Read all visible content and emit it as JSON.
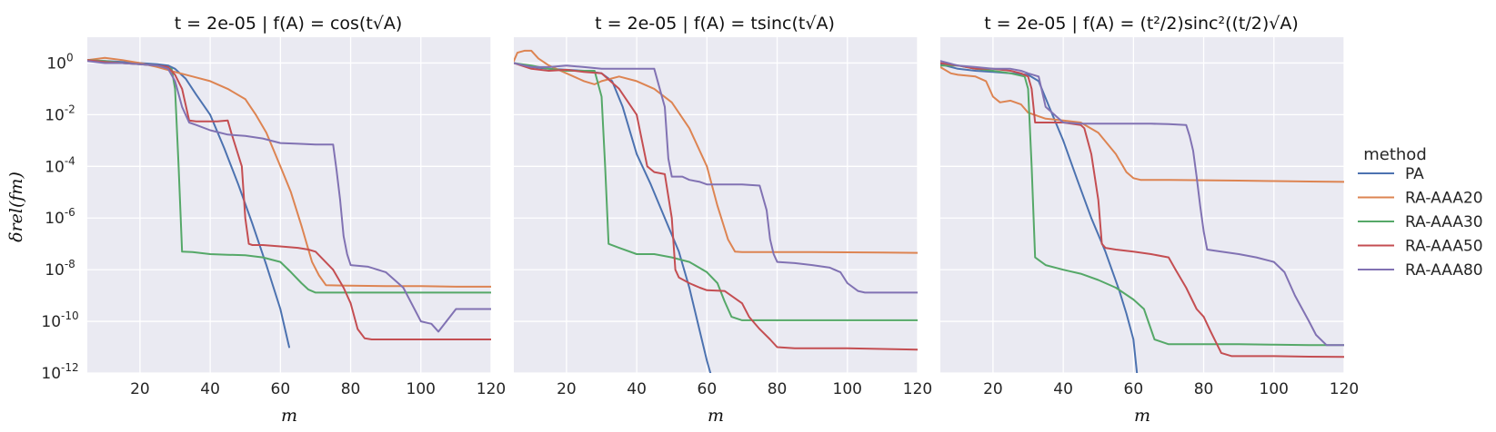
{
  "figure": {
    "ylabel": "δrel(fm)",
    "legend_title": "method",
    "legend_placement": "right-center"
  },
  "chart_data": [
    {
      "type": "line",
      "title": "t = 2e-05 | f(A) = cos(t√A)",
      "xlabel": "m",
      "ylabel": "δrel(fm)",
      "xlim": [
        5,
        120
      ],
      "ylim": [
        1e-12,
        10
      ],
      "yscale": "log",
      "grid": true,
      "xticks": [
        20,
        40,
        60,
        80,
        100,
        120
      ],
      "yticks": [
        "10^0",
        "10^-2",
        "10^-4",
        "10^-6",
        "10^-8",
        "10^-10",
        "10^-12"
      ],
      "series": [
        {
          "name": "PA",
          "color": "#4c72b0",
          "x": [
            5,
            10,
            15,
            20,
            25,
            28,
            30,
            33,
            36,
            40,
            44,
            48,
            52,
            56,
            60,
            62.5
          ],
          "y": [
            1.3,
            1.2,
            1.1,
            1.0,
            0.9,
            0.8,
            0.6,
            0.25,
            0.06,
            0.01,
            0.0005,
            2e-05,
            6e-07,
            1.5e-08,
            3e-10,
            1e-11
          ]
        },
        {
          "name": "RA-AAA20",
          "color": "#dd8452",
          "x": [
            5,
            10,
            15,
            20,
            25,
            30,
            35,
            40,
            45,
            50,
            53,
            56,
            60,
            63,
            66,
            69,
            71,
            73,
            80,
            90,
            100,
            110,
            120
          ],
          "y": [
            1.3,
            1.6,
            1.3,
            1.0,
            0.7,
            0.45,
            0.3,
            0.2,
            0.1,
            0.04,
            0.01,
            0.002,
            0.0001,
            1e-05,
            5e-07,
            2e-08,
            6e-09,
            2.5e-09,
            2.4e-09,
            2.3e-09,
            2.3e-09,
            2.2e-09,
            2.2e-09
          ]
        },
        {
          "name": "RA-AAA30",
          "color": "#55a868",
          "x": [
            5,
            10,
            15,
            20,
            25,
            29,
            30,
            31,
            32,
            35,
            40,
            45,
            50,
            55,
            60,
            63,
            66,
            68,
            70,
            75,
            80,
            90,
            100,
            110,
            120
          ],
          "y": [
            1.3,
            1.2,
            1.0,
            0.9,
            0.8,
            0.6,
            0.1,
            0.0001,
            5e-08,
            4.8e-08,
            4e-08,
            3.8e-08,
            3.6e-08,
            3e-08,
            2e-08,
            8e-09,
            3e-09,
            1.7e-09,
            1.3e-09,
            1.3e-09,
            1.3e-09,
            1.3e-09,
            1.3e-09,
            1.3e-09,
            1.3e-09
          ]
        },
        {
          "name": "RA-AAA50",
          "color": "#c44e52",
          "x": [
            5,
            10,
            15,
            20,
            25,
            28,
            30,
            32,
            34,
            36,
            40,
            42,
            45,
            46,
            49,
            50,
            51,
            52,
            55,
            60,
            65,
            68,
            70,
            75,
            78,
            80,
            82,
            84,
            86,
            90,
            100,
            110,
            120
          ],
          "y": [
            1.3,
            1.1,
            1.0,
            0.9,
            0.8,
            0.7,
            0.35,
            0.1,
            0.006,
            0.0055,
            0.0055,
            0.0055,
            0.006,
            0.002,
            0.0001,
            1e-06,
            1e-07,
            9e-08,
            9e-08,
            8e-08,
            7e-08,
            6e-08,
            5e-08,
            1e-08,
            2e-09,
            5e-10,
            5e-11,
            2.2e-11,
            2e-11,
            2e-11,
            2e-11,
            2e-11,
            2e-11
          ]
        },
        {
          "name": "RA-AAA80",
          "color": "#8172b3",
          "x": [
            5,
            10,
            15,
            20,
            25,
            28,
            30,
            32,
            34,
            36,
            40,
            45,
            50,
            55,
            60,
            65,
            70,
            75,
            76,
            77,
            78,
            79,
            80,
            85,
            90,
            95,
            100,
            103,
            105,
            110,
            120
          ],
          "y": [
            1.2,
            1.0,
            1.0,
            0.9,
            0.8,
            0.6,
            0.2,
            0.02,
            0.005,
            0.004,
            0.0025,
            0.0017,
            0.0015,
            0.0012,
            0.0008,
            0.00075,
            0.0007,
            0.0007,
            7e-05,
            5e-06,
            2e-07,
            4e-08,
            1.5e-08,
            1.3e-08,
            8e-09,
            2e-09,
            1e-10,
            8e-11,
            4e-11,
            3e-10,
            3e-10
          ]
        }
      ]
    },
    {
      "type": "line",
      "title": "t = 2e-05 | f(A) = tsinc(t√A)",
      "xlabel": "m",
      "xlim": [
        5,
        120
      ],
      "ylim": [
        1e-12,
        10
      ],
      "yscale": "log",
      "grid": true,
      "xticks": [
        20,
        40,
        60,
        80,
        100,
        120
      ],
      "series": [
        {
          "name": "PA",
          "color": "#4c72b0",
          "x": [
            5,
            10,
            15,
            20,
            25,
            30,
            33,
            36,
            40,
            44,
            48,
            52,
            55,
            58,
            60,
            61
          ],
          "y": [
            1.0,
            0.7,
            0.6,
            0.55,
            0.5,
            0.4,
            0.2,
            0.02,
            0.0003,
            2e-05,
            1e-06,
            5e-08,
            2e-09,
            4e-11,
            3e-12,
            1e-12
          ]
        },
        {
          "name": "RA-AAA20",
          "color": "#dd8452",
          "x": [
            5,
            6,
            8,
            10,
            12,
            15,
            20,
            25,
            28,
            30,
            35,
            40,
            45,
            50,
            55,
            60,
            63,
            66,
            68,
            70,
            80,
            90,
            100,
            110,
            120
          ],
          "y": [
            1.2,
            2.5,
            3,
            3,
            1.5,
            0.8,
            0.4,
            0.2,
            0.15,
            0.2,
            0.3,
            0.2,
            0.1,
            0.03,
            0.003,
            0.0001,
            3e-06,
            1.5e-07,
            5e-08,
            4.8e-08,
            4.8e-08,
            4.8e-08,
            4.7e-08,
            4.6e-08,
            4.5e-08
          ]
        },
        {
          "name": "RA-AAA30",
          "color": "#55a868",
          "x": [
            5,
            10,
            15,
            20,
            25,
            28,
            30,
            31,
            32,
            35,
            40,
            45,
            50,
            55,
            60,
            63,
            65,
            67,
            70,
            75,
            80,
            90,
            100,
            110,
            120
          ],
          "y": [
            1.0,
            0.8,
            0.6,
            0.5,
            0.5,
            0.5,
            0.05,
            0.0001,
            1e-07,
            7e-08,
            4e-08,
            4e-08,
            3e-08,
            2e-08,
            8e-09,
            3e-09,
            6e-10,
            1.5e-10,
            1.1e-10,
            1.1e-10,
            1.1e-10,
            1.1e-10,
            1.1e-10,
            1.1e-10,
            1.1e-10
          ]
        },
        {
          "name": "RA-AAA50",
          "color": "#c44e52",
          "x": [
            5,
            10,
            15,
            20,
            25,
            30,
            35,
            40,
            43,
            45,
            48,
            50,
            51,
            52,
            55,
            58,
            60,
            65,
            70,
            72,
            75,
            78,
            80,
            85,
            90,
            100,
            110,
            120
          ],
          "y": [
            1.0,
            0.6,
            0.5,
            0.55,
            0.45,
            0.4,
            0.1,
            0.01,
            0.0001,
            6e-05,
            5e-05,
            1e-06,
            1e-08,
            5e-09,
            3e-09,
            2e-09,
            1.6e-09,
            1.5e-09,
            5e-10,
            1.5e-10,
            5e-11,
            2e-11,
            1e-11,
            9e-12,
            9e-12,
            9e-12,
            8.5e-12,
            8e-12
          ]
        },
        {
          "name": "RA-AAA80",
          "color": "#8172b3",
          "x": [
            5,
            10,
            15,
            20,
            25,
            30,
            35,
            40,
            45,
            48,
            49,
            50,
            53,
            55,
            58,
            60,
            65,
            70,
            75,
            77,
            78,
            79,
            80,
            85,
            90,
            95,
            98,
            100,
            103,
            105,
            110,
            120
          ],
          "y": [
            1.0,
            0.7,
            0.7,
            0.8,
            0.7,
            0.6,
            0.6,
            0.6,
            0.6,
            0.02,
            0.0002,
            4e-05,
            4e-05,
            3e-05,
            2.5e-05,
            2e-05,
            2e-05,
            2e-05,
            1.8e-05,
            2e-06,
            1.5e-07,
            4e-08,
            2e-08,
            1.8e-08,
            1.5e-08,
            1.2e-08,
            8e-09,
            3e-09,
            1.5e-09,
            1.3e-09,
            1.3e-09,
            1.3e-09
          ]
        }
      ]
    },
    {
      "type": "line",
      "title": "t = 2e-05 | f(A) = (t²/2)sinc²((t/2)√A)",
      "xlabel": "m",
      "xlim": [
        5,
        120
      ],
      "ylim": [
        1e-12,
        10
      ],
      "yscale": "log",
      "grid": true,
      "xticks": [
        20,
        40,
        60,
        80,
        100,
        120
      ],
      "series": [
        {
          "name": "PA",
          "color": "#4c72b0",
          "x": [
            5,
            10,
            15,
            20,
            25,
            30,
            33,
            36,
            40,
            44,
            48,
            52,
            56,
            58,
            60,
            61
          ],
          "y": [
            0.9,
            0.6,
            0.5,
            0.45,
            0.4,
            0.35,
            0.2,
            0.02,
            0.001,
            3e-05,
            1e-06,
            5e-08,
            1.5e-09,
            2e-10,
            2e-11,
            1e-12
          ]
        },
        {
          "name": "RA-AAA20",
          "color": "#dd8452",
          "x": [
            5,
            8,
            10,
            15,
            18,
            20,
            22,
            25,
            28,
            30,
            35,
            40,
            45,
            50,
            55,
            58,
            60,
            62,
            65,
            70,
            80,
            90,
            100,
            110,
            120
          ],
          "y": [
            0.7,
            0.4,
            0.35,
            0.3,
            0.2,
            0.05,
            0.03,
            0.035,
            0.025,
            0.012,
            0.007,
            0.006,
            0.005,
            0.002,
            0.0003,
            6e-05,
            3.5e-05,
            3e-05,
            3e-05,
            3e-05,
            2.9e-05,
            2.8e-05,
            2.7e-05,
            2.6e-05,
            2.5e-05
          ]
        },
        {
          "name": "RA-AAA30",
          "color": "#55a868",
          "x": [
            5,
            10,
            15,
            20,
            25,
            29,
            30,
            31,
            32,
            35,
            40,
            45,
            50,
            55,
            60,
            63,
            66,
            70,
            75,
            80,
            90,
            100,
            110,
            120
          ],
          "y": [
            0.8,
            0.8,
            0.6,
            0.5,
            0.4,
            0.3,
            0.1,
            0.0001,
            3e-08,
            1.5e-08,
            1e-08,
            7e-09,
            4e-09,
            2e-09,
            7e-10,
            3e-10,
            2e-11,
            1.3e-11,
            1.3e-11,
            1.3e-11,
            1.3e-11,
            1.25e-11,
            1.2e-11,
            1.2e-11
          ]
        },
        {
          "name": "RA-AAA50",
          "color": "#c44e52",
          "x": [
            5,
            10,
            15,
            20,
            25,
            28,
            30,
            31,
            32,
            35,
            40,
            45,
            46,
            48,
            50,
            51,
            52,
            55,
            60,
            65,
            70,
            72,
            75,
            78,
            80,
            82,
            85,
            88,
            90,
            100,
            110,
            120
          ],
          "y": [
            1.0,
            0.8,
            0.6,
            0.6,
            0.5,
            0.4,
            0.3,
            0.1,
            0.005,
            0.005,
            0.005,
            0.004,
            0.003,
            0.0003,
            5e-06,
            1e-07,
            7e-08,
            6e-08,
            5e-08,
            4e-08,
            3e-08,
            1e-08,
            2e-09,
            3e-10,
            1.5e-10,
            4e-11,
            6e-12,
            4.5e-12,
            4.5e-12,
            4.5e-12,
            4.3e-12,
            4.2e-12
          ]
        },
        {
          "name": "RA-AAA80",
          "color": "#8172b3",
          "x": [
            5,
            10,
            15,
            20,
            25,
            28,
            30,
            33,
            35,
            40,
            45,
            50,
            55,
            60,
            65,
            70,
            75,
            76,
            77,
            78,
            79,
            80,
            81,
            85,
            90,
            95,
            100,
            103,
            106,
            110,
            112,
            115,
            120
          ],
          "y": [
            1.2,
            0.8,
            0.7,
            0.6,
            0.6,
            0.5,
            0.4,
            0.3,
            0.02,
            0.005,
            0.0045,
            0.0045,
            0.0045,
            0.0045,
            0.0045,
            0.0043,
            0.004,
            0.0015,
            0.0004,
            4e-05,
            3e-06,
            3e-07,
            6e-08,
            5e-08,
            4e-08,
            3e-08,
            2e-08,
            8e-09,
            1e-09,
            1e-10,
            3e-11,
            1.2e-11,
            1.2e-11
          ]
        }
      ]
    }
  ],
  "legend": {
    "entries": [
      {
        "name": "PA",
        "color": "#4c72b0"
      },
      {
        "name": "RA-AAA20",
        "color": "#dd8452"
      },
      {
        "name": "RA-AAA30",
        "color": "#55a868"
      },
      {
        "name": "RA-AAA50",
        "color": "#c44e52"
      },
      {
        "name": "RA-AAA80",
        "color": "#8172b3"
      }
    ]
  }
}
